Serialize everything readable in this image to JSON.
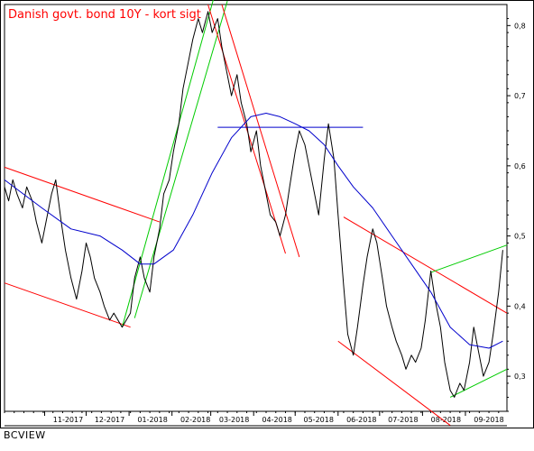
{
  "chart_data": {
    "type": "line",
    "title": "Danish govt. bond 10Y - kort sigt",
    "title_color": "#ff0000",
    "xlabel": "",
    "ylabel": "",
    "ylim": [
      0.25,
      0.83
    ],
    "y_ticks": [
      "0,3",
      "0,4",
      "0,5",
      "0,6",
      "0,7",
      "0,8"
    ],
    "y_tick_values": [
      0.3,
      0.4,
      0.5,
      0.6,
      0.7,
      0.8
    ],
    "x_ticks": [
      "11-2017",
      "12-2017",
      "01-2018",
      "02-2018",
      "03-2018",
      "04-2018",
      "05-2018",
      "06-2018",
      "07-2018",
      "08-2018",
      "09-2018"
    ],
    "x_tick_values": [
      "2017-11-01",
      "2017-12-01",
      "2018-01-01",
      "2018-02-01",
      "2018-03-01",
      "2018-04-01",
      "2018-05-01",
      "2018-06-01",
      "2018-07-01",
      "2018-08-01",
      "2018-09-01"
    ],
    "x_range": [
      "2017-10-03",
      "2018-10-01"
    ],
    "grid": false,
    "series": [
      {
        "color": "#000000",
        "points": [
          [
            "2017-10-03",
            0.57
          ],
          [
            "2017-10-06",
            0.55
          ],
          [
            "2017-10-09",
            0.58
          ],
          [
            "2017-10-12",
            0.56
          ],
          [
            "2017-10-16",
            0.54
          ],
          [
            "2017-10-19",
            0.57
          ],
          [
            "2017-10-23",
            0.55
          ],
          [
            "2017-10-26",
            0.52
          ],
          [
            "2017-10-30",
            0.49
          ],
          [
            "2017-11-02",
            0.52
          ],
          [
            "2017-11-06",
            0.56
          ],
          [
            "2017-11-09",
            0.58
          ],
          [
            "2017-11-13",
            0.52
          ],
          [
            "2017-11-16",
            0.48
          ],
          [
            "2017-11-20",
            0.44
          ],
          [
            "2017-11-24",
            0.41
          ],
          [
            "2017-11-28",
            0.45
          ],
          [
            "2017-12-01",
            0.49
          ],
          [
            "2017-12-04",
            0.47
          ],
          [
            "2017-12-07",
            0.44
          ],
          [
            "2017-12-11",
            0.42
          ],
          [
            "2017-12-14",
            0.4
          ],
          [
            "2017-12-18",
            0.38
          ],
          [
            "2017-12-21",
            0.39
          ],
          [
            "2017-12-27",
            0.37
          ],
          [
            "2018-01-02",
            0.39
          ],
          [
            "2018-01-05",
            0.44
          ],
          [
            "2018-01-09",
            0.47
          ],
          [
            "2018-01-12",
            0.44
          ],
          [
            "2018-01-16",
            0.42
          ],
          [
            "2018-01-19",
            0.47
          ],
          [
            "2018-01-23",
            0.51
          ],
          [
            "2018-01-26",
            0.56
          ],
          [
            "2018-01-30",
            0.58
          ],
          [
            "2018-02-02",
            0.62
          ],
          [
            "2018-02-06",
            0.66
          ],
          [
            "2018-02-09",
            0.71
          ],
          [
            "2018-02-13",
            0.75
          ],
          [
            "2018-02-16",
            0.78
          ],
          [
            "2018-02-20",
            0.81
          ],
          [
            "2018-02-23",
            0.79
          ],
          [
            "2018-02-27",
            0.82
          ],
          [
            "2018-03-02",
            0.79
          ],
          [
            "2018-03-06",
            0.81
          ],
          [
            "2018-03-09",
            0.77
          ],
          [
            "2018-03-13",
            0.73
          ],
          [
            "2018-03-16",
            0.7
          ],
          [
            "2018-03-20",
            0.73
          ],
          [
            "2018-03-23",
            0.69
          ],
          [
            "2018-03-27",
            0.66
          ],
          [
            "2018-03-30",
            0.62
          ],
          [
            "2018-04-03",
            0.65
          ],
          [
            "2018-04-06",
            0.6
          ],
          [
            "2018-04-10",
            0.56
          ],
          [
            "2018-04-13",
            0.53
          ],
          [
            "2018-04-17",
            0.52
          ],
          [
            "2018-04-20",
            0.5
          ],
          [
            "2018-04-24",
            0.53
          ],
          [
            "2018-04-27",
            0.57
          ],
          [
            "2018-05-01",
            0.62
          ],
          [
            "2018-05-04",
            0.65
          ],
          [
            "2018-05-08",
            0.63
          ],
          [
            "2018-05-11",
            0.6
          ],
          [
            "2018-05-15",
            0.56
          ],
          [
            "2018-05-18",
            0.53
          ],
          [
            "2018-05-22",
            0.61
          ],
          [
            "2018-05-25",
            0.66
          ],
          [
            "2018-05-29",
            0.61
          ],
          [
            "2018-06-01",
            0.53
          ],
          [
            "2018-06-05",
            0.43
          ],
          [
            "2018-06-08",
            0.36
          ],
          [
            "2018-06-12",
            0.33
          ],
          [
            "2018-06-15",
            0.37
          ],
          [
            "2018-06-19",
            0.43
          ],
          [
            "2018-06-22",
            0.47
          ],
          [
            "2018-06-26",
            0.51
          ],
          [
            "2018-06-29",
            0.49
          ],
          [
            "2018-07-03",
            0.44
          ],
          [
            "2018-07-06",
            0.4
          ],
          [
            "2018-07-10",
            0.37
          ],
          [
            "2018-07-13",
            0.35
          ],
          [
            "2018-07-17",
            0.33
          ],
          [
            "2018-07-20",
            0.31
          ],
          [
            "2018-07-24",
            0.33
          ],
          [
            "2018-07-27",
            0.32
          ],
          [
            "2018-07-31",
            0.34
          ],
          [
            "2018-08-03",
            0.38
          ],
          [
            "2018-08-07",
            0.45
          ],
          [
            "2018-08-10",
            0.41
          ],
          [
            "2018-08-14",
            0.37
          ],
          [
            "2018-08-17",
            0.32
          ],
          [
            "2018-08-21",
            0.28
          ],
          [
            "2018-08-24",
            0.27
          ],
          [
            "2018-08-28",
            0.29
          ],
          [
            "2018-08-31",
            0.28
          ],
          [
            "2018-09-04",
            0.32
          ],
          [
            "2018-09-07",
            0.37
          ],
          [
            "2018-09-11",
            0.33
          ],
          [
            "2018-09-14",
            0.3
          ],
          [
            "2018-09-18",
            0.32
          ],
          [
            "2018-09-21",
            0.36
          ],
          [
            "2018-09-25",
            0.42
          ],
          [
            "2018-09-28",
            0.48
          ]
        ]
      },
      {
        "color": "#0000cc",
        "points": [
          [
            "2017-10-03",
            0.58
          ],
          [
            "2017-10-30",
            0.54
          ],
          [
            "2017-11-20",
            0.51
          ],
          [
            "2017-12-11",
            0.5
          ],
          [
            "2017-12-27",
            0.48
          ],
          [
            "2018-01-09",
            0.46
          ],
          [
            "2018-01-19",
            0.46
          ],
          [
            "2018-02-02",
            0.48
          ],
          [
            "2018-02-16",
            0.53
          ],
          [
            "2018-03-02",
            0.59
          ],
          [
            "2018-03-16",
            0.64
          ],
          [
            "2018-03-30",
            0.67
          ],
          [
            "2018-04-10",
            0.675
          ],
          [
            "2018-04-20",
            0.67
          ],
          [
            "2018-05-01",
            0.66
          ],
          [
            "2018-05-11",
            0.65
          ],
          [
            "2018-05-22",
            0.63
          ],
          [
            "2018-06-01",
            0.6
          ],
          [
            "2018-06-12",
            0.57
          ],
          [
            "2018-06-26",
            0.54
          ],
          [
            "2018-07-10",
            0.5
          ],
          [
            "2018-07-24",
            0.46
          ],
          [
            "2018-08-07",
            0.42
          ],
          [
            "2018-08-21",
            0.37
          ],
          [
            "2018-09-04",
            0.345
          ],
          [
            "2018-09-18",
            0.34
          ],
          [
            "2018-09-28",
            0.35
          ]
        ]
      }
    ],
    "trendlines": [
      {
        "color": "#ff0000",
        "points": [
          [
            "2017-10-03",
            0.598
          ],
          [
            "2018-01-23",
            0.52
          ]
        ]
      },
      {
        "color": "#ff0000",
        "points": [
          [
            "2017-10-03",
            0.433
          ],
          [
            "2018-01-02",
            0.37
          ]
        ]
      },
      {
        "color": "#00cc00",
        "points": [
          [
            "2017-12-27",
            0.37
          ],
          [
            "2018-03-04",
            0.845
          ]
        ]
      },
      {
        "color": "#00cc00",
        "points": [
          [
            "2018-01-05",
            0.383
          ],
          [
            "2018-03-13",
            0.835
          ]
        ]
      },
      {
        "color": "#ff0000",
        "points": [
          [
            "2018-02-27",
            0.83
          ],
          [
            "2018-04-24",
            0.475
          ]
        ]
      },
      {
        "color": "#ff0000",
        "points": [
          [
            "2018-03-09",
            0.83
          ],
          [
            "2018-05-04",
            0.47
          ]
        ]
      },
      {
        "color": "#0000cc",
        "points": [
          [
            "2018-03-06",
            0.655
          ],
          [
            "2018-06-19",
            0.655
          ]
        ]
      },
      {
        "color": "#ff0000",
        "points": [
          [
            "2018-06-05",
            0.527
          ],
          [
            "2018-10-01",
            0.39
          ]
        ]
      },
      {
        "color": "#ff0000",
        "points": [
          [
            "2018-06-01",
            0.35
          ],
          [
            "2018-08-21",
            0.23
          ]
        ]
      },
      {
        "color": "#00cc00",
        "points": [
          [
            "2018-08-07",
            0.448
          ],
          [
            "2018-10-01",
            0.487
          ]
        ]
      },
      {
        "color": "#00cc00",
        "points": [
          [
            "2018-08-21",
            0.27
          ],
          [
            "2018-10-01",
            0.31
          ]
        ]
      }
    ]
  },
  "footer": {
    "brand": "BCVIEW"
  }
}
